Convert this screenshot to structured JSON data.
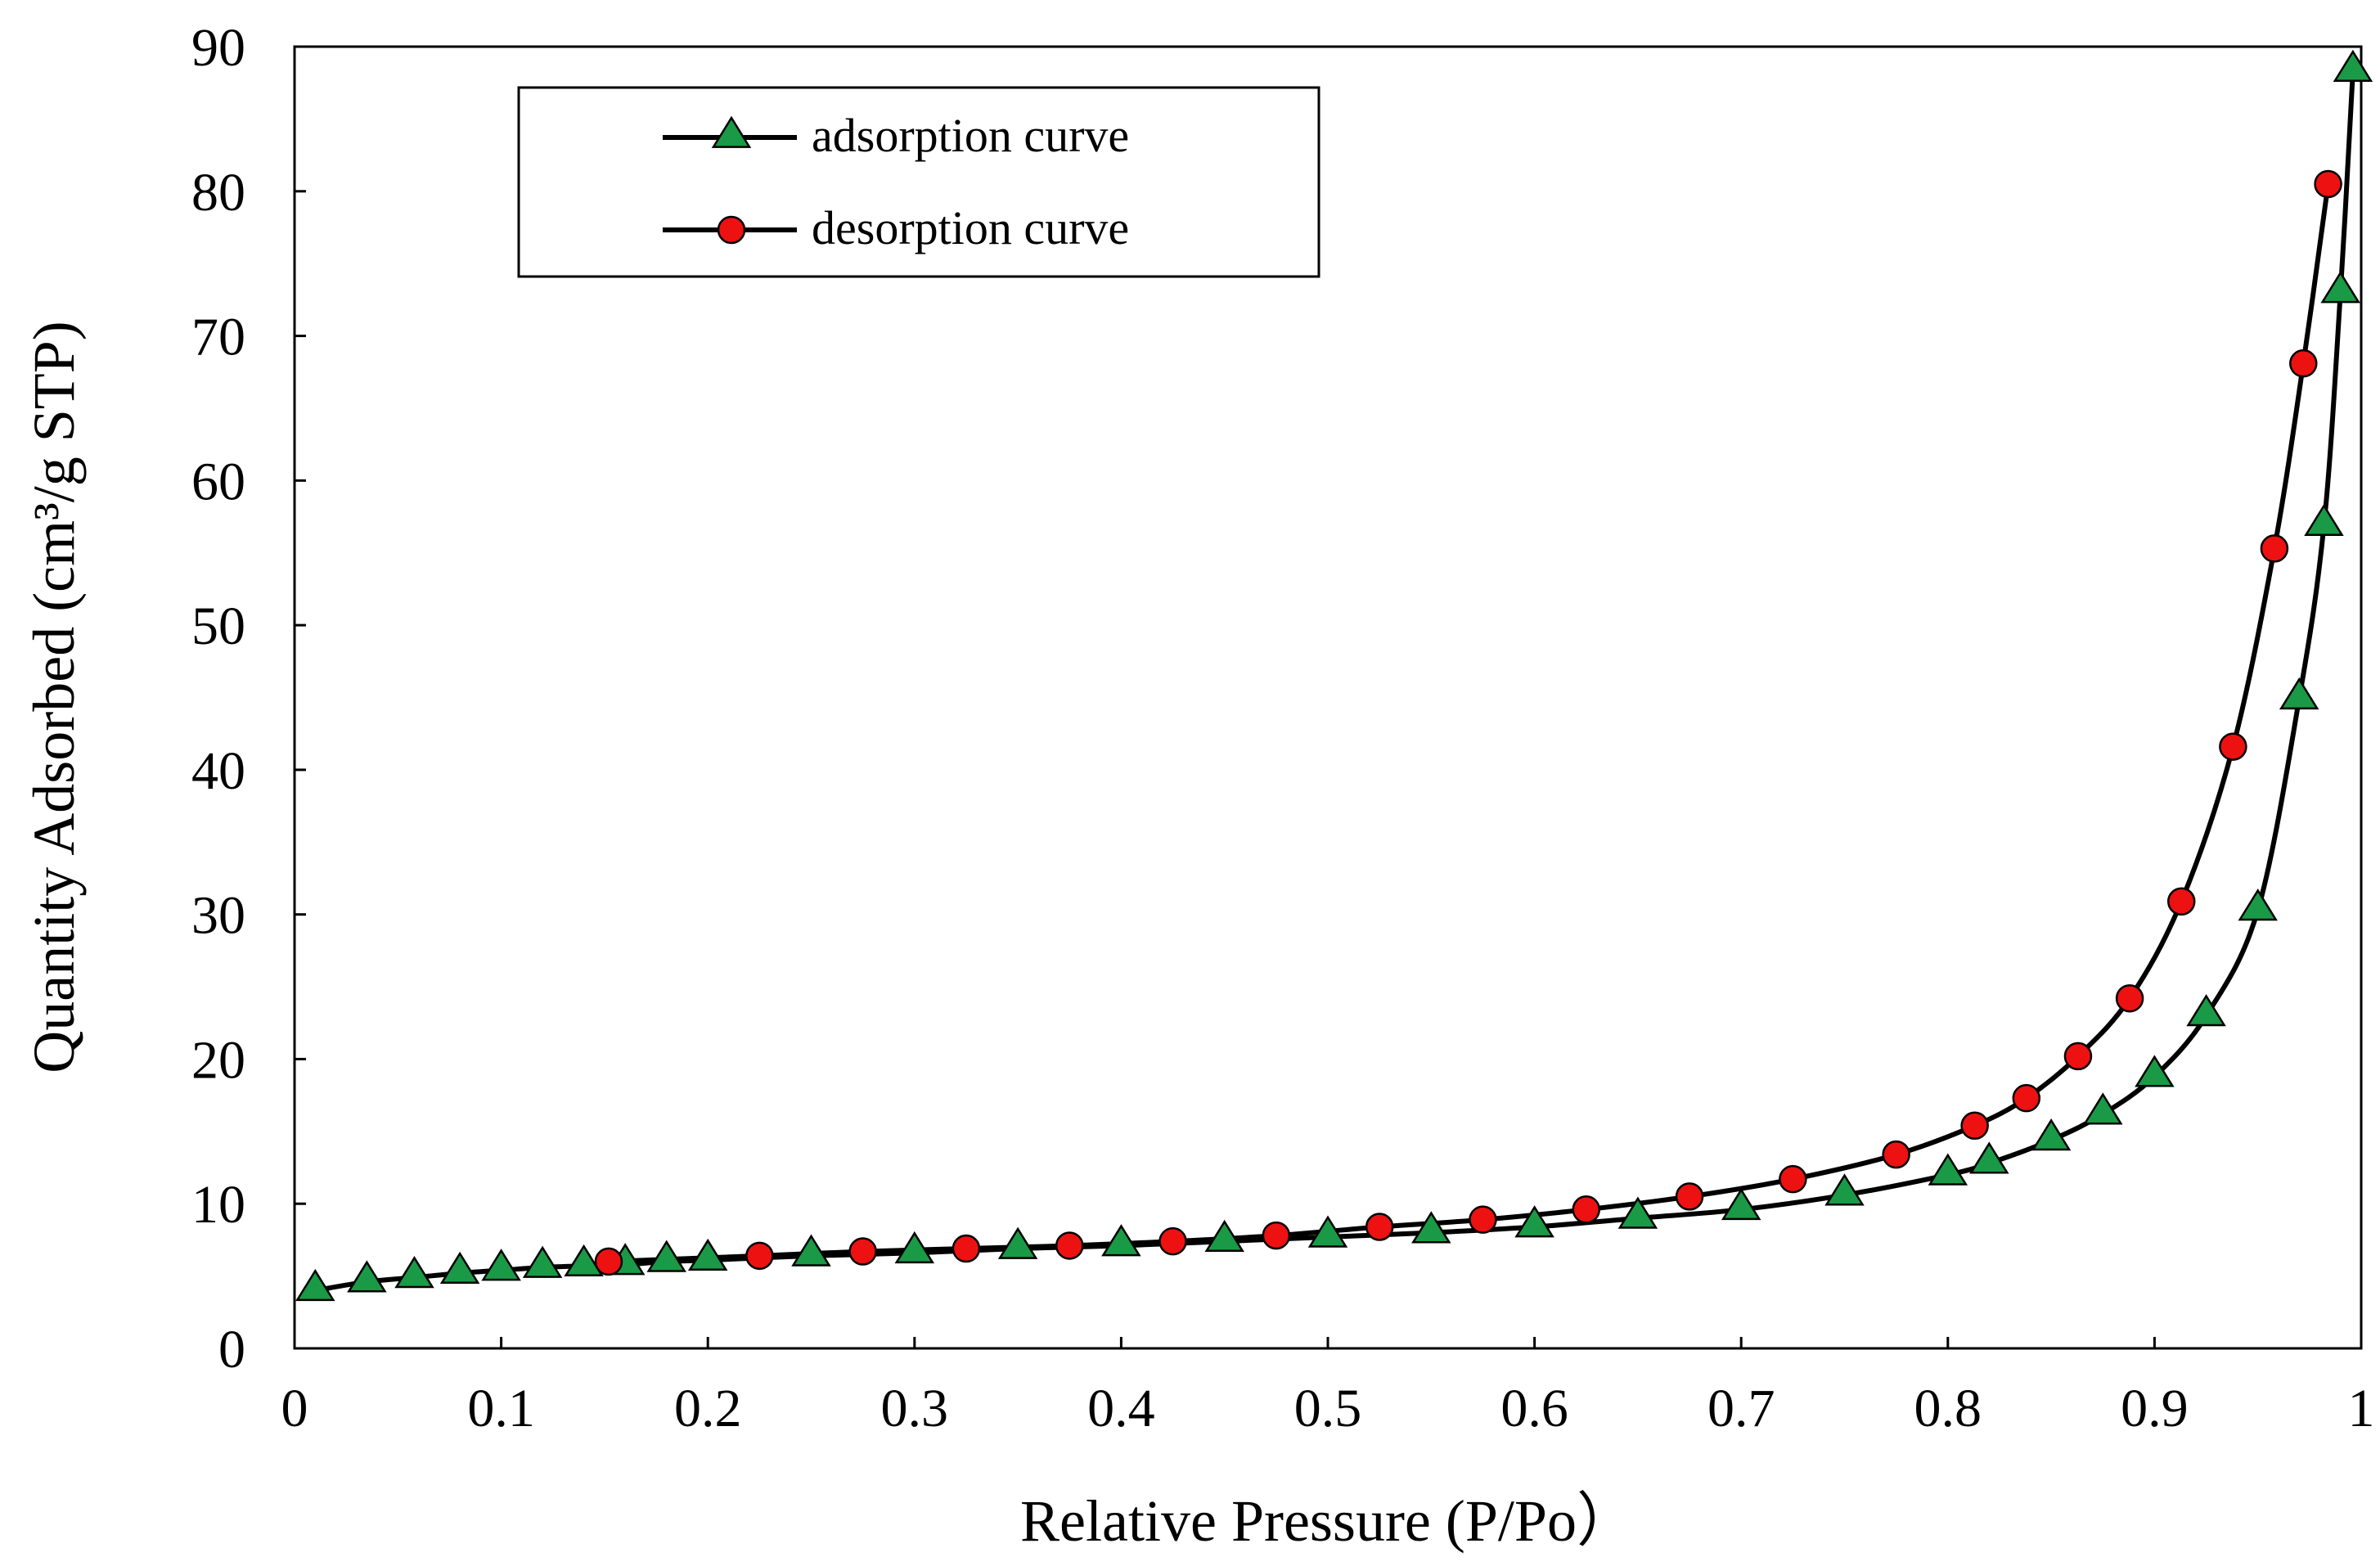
{
  "chart_data": {
    "type": "line",
    "title": "",
    "xlabel": "Relative Pressure (P/Po）",
    "ylabel": "Quantity Adsorbed (cm³/g STP)",
    "xlim": [
      0,
      1
    ],
    "ylim": [
      0,
      90
    ],
    "xticks": [
      0,
      0.1,
      0.2,
      0.3,
      0.4,
      0.5,
      0.6,
      0.7,
      0.8,
      0.9,
      1
    ],
    "xtick_labels": [
      "0",
      "0.1",
      "0.2",
      "0.3",
      "0.4",
      "0.5",
      "0.6",
      "0.7",
      "0.8",
      "0.9",
      "1"
    ],
    "yticks": [
      0,
      10,
      20,
      30,
      40,
      50,
      60,
      70,
      80,
      90
    ],
    "ytick_labels": [
      "0",
      "10",
      "20",
      "30",
      "40",
      "50",
      "60",
      "70",
      "80",
      "90"
    ],
    "grid": false,
    "legend_position": "top-left",
    "series": [
      {
        "name": "adsorption curve",
        "marker": "triangle",
        "color": "#1a9a46",
        "x": [
          0.01,
          0.035,
          0.058,
          0.08,
          0.1,
          0.12,
          0.14,
          0.16,
          0.18,
          0.2,
          0.25,
          0.3,
          0.35,
          0.4,
          0.45,
          0.5,
          0.55,
          0.6,
          0.65,
          0.7,
          0.75,
          0.8,
          0.82,
          0.85,
          0.875,
          0.9,
          0.925,
          0.95,
          0.97,
          0.982,
          0.99,
          0.996
        ],
        "values": [
          4.0,
          4.6,
          4.9,
          5.2,
          5.4,
          5.6,
          5.7,
          5.8,
          6.0,
          6.1,
          6.4,
          6.6,
          6.9,
          7.1,
          7.4,
          7.7,
          8.0,
          8.4,
          9.0,
          9.6,
          10.6,
          12.0,
          12.8,
          14.4,
          16.2,
          18.8,
          23.0,
          30.3,
          44.9,
          56.9,
          73.0,
          88.3
        ]
      },
      {
        "name": "desorption curve",
        "marker": "circle",
        "color": "#ee1111",
        "x": [
          0.152,
          0.225,
          0.275,
          0.325,
          0.375,
          0.425,
          0.475,
          0.525,
          0.575,
          0.625,
          0.675,
          0.725,
          0.775,
          0.813,
          0.838,
          0.863,
          0.888,
          0.913,
          0.938,
          0.958,
          0.972,
          0.984
        ],
        "values": [
          6.0,
          6.4,
          6.7,
          6.9,
          7.1,
          7.4,
          7.8,
          8.4,
          8.9,
          9.6,
          10.5,
          11.7,
          13.4,
          15.4,
          17.3,
          20.2,
          24.2,
          30.9,
          41.6,
          55.3,
          68.1,
          80.5
        ]
      }
    ]
  }
}
